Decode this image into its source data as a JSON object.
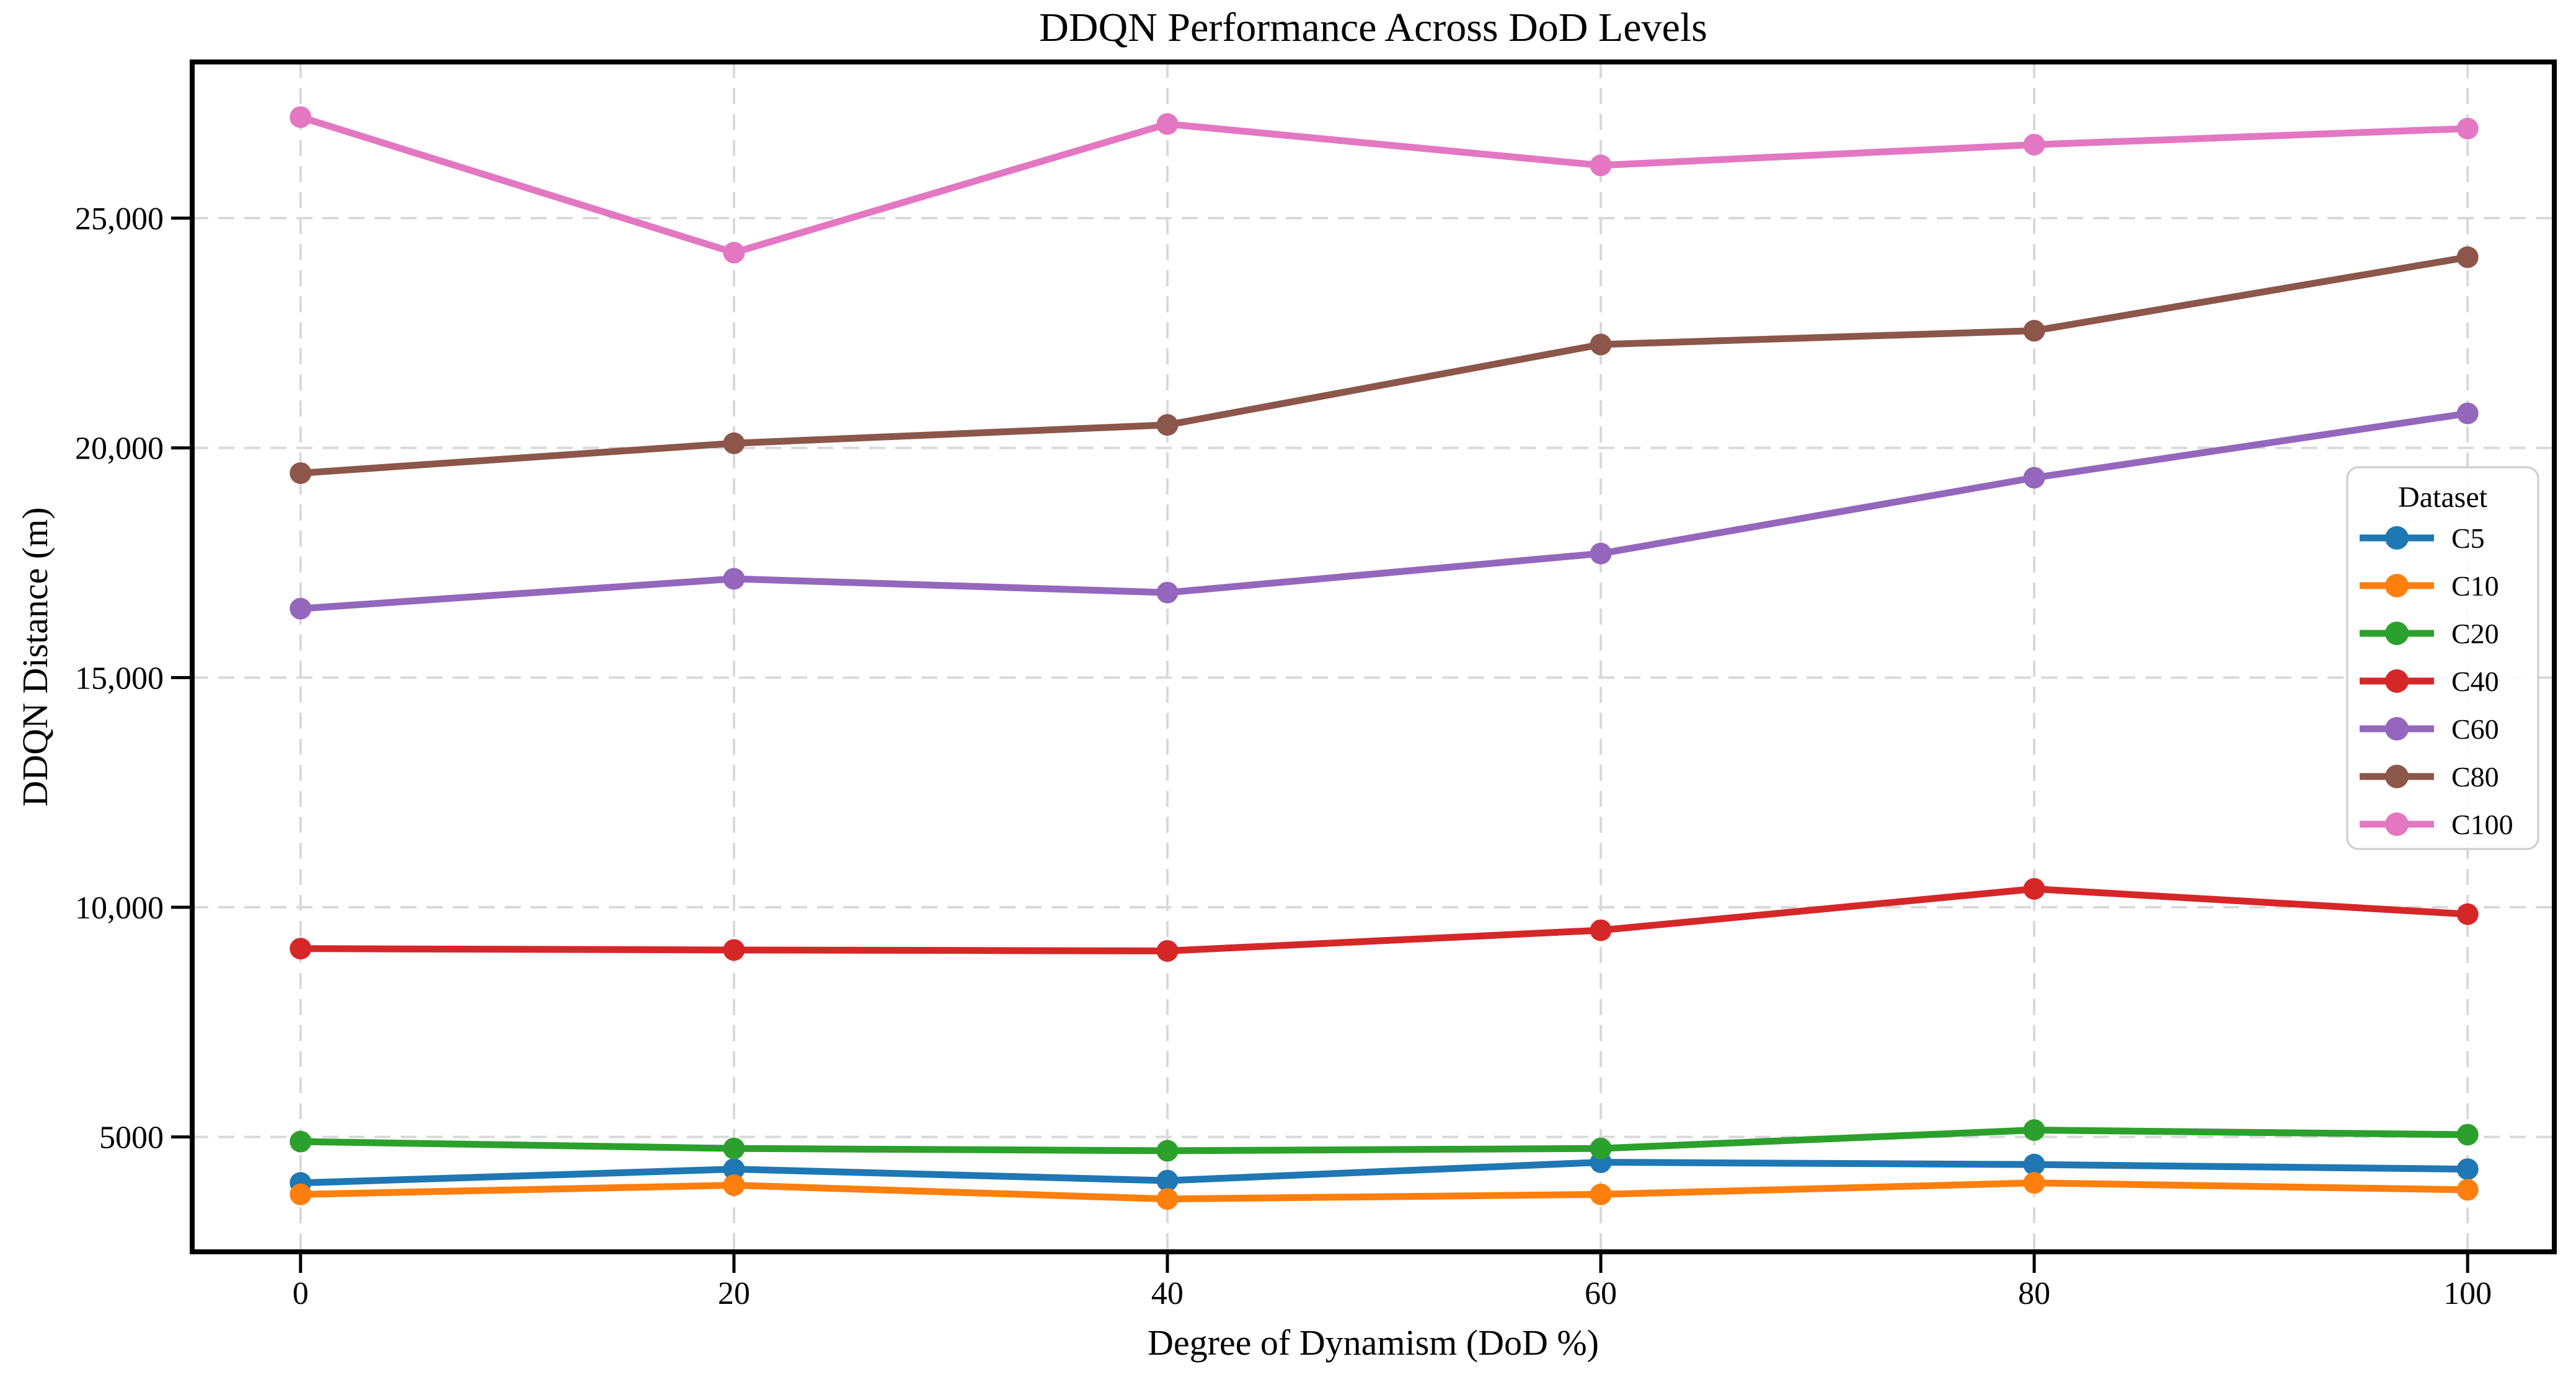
{
  "chart_data": {
    "type": "line",
    "title": "DDQN Performance Across DoD Levels",
    "xlabel": "Degree of Dynamism (DoD %)",
    "ylabel": "DDQN Distance (m)",
    "x": [
      0,
      20,
      40,
      60,
      80,
      100
    ],
    "xtick_labels": [
      "0",
      "20",
      "40",
      "60",
      "80",
      "100"
    ],
    "ytick_values": [
      5000,
      10000,
      15000,
      20000,
      25000
    ],
    "ytick_labels": [
      "5000",
      "10,000",
      "15,000",
      "20,000",
      "25,000"
    ],
    "xlim": [
      -5,
      104
    ],
    "ylim": [
      2500,
      28400
    ],
    "grid": true,
    "grid_color": "#d9d9d9",
    "text_color": "#000000",
    "legend": {
      "title": "Dataset",
      "position": "right"
    },
    "series": [
      {
        "name": "C5",
        "color": "#1f77b4",
        "values": [
          4000,
          4300,
          4050,
          4450,
          4400,
          4300
        ]
      },
      {
        "name": "C10",
        "color": "#ff7f0e",
        "values": [
          3750,
          3950,
          3650,
          3750,
          4000,
          3850
        ]
      },
      {
        "name": "C20",
        "color": "#2ca02c",
        "values": [
          4900,
          4750,
          4700,
          4750,
          5150,
          5050
        ]
      },
      {
        "name": "C40",
        "color": "#d62728",
        "values": [
          9100,
          9070,
          9050,
          9500,
          10400,
          9850
        ]
      },
      {
        "name": "C60",
        "color": "#9467bd",
        "values": [
          16500,
          17150,
          16850,
          17700,
          19350,
          20750
        ]
      },
      {
        "name": "C80",
        "color": "#8c564b",
        "values": [
          19450,
          20100,
          20500,
          22250,
          22550,
          24150
        ]
      },
      {
        "name": "C100",
        "color": "#e377c2",
        "values": [
          27200,
          24250,
          27050,
          26150,
          26600,
          26950
        ]
      }
    ]
  }
}
